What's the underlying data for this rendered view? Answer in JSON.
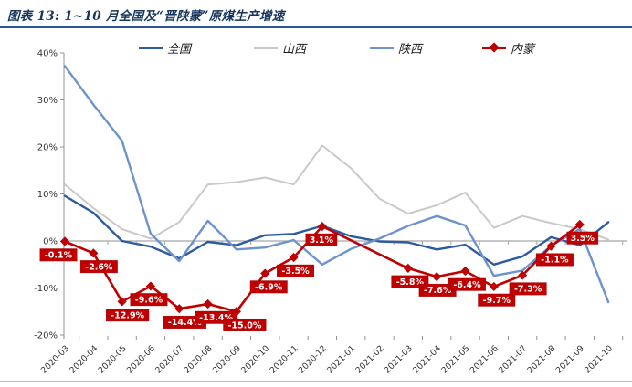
{
  "header": {
    "title": "图表 13:  1~10 月全国及“晋陕蒙”原煤生产增速"
  },
  "chart_data": {
    "type": "line",
    "title": "1~10 月全国及“晋陕蒙”原煤生产增速",
    "categories": [
      "2020-03",
      "2020-04",
      "2020-05",
      "2020-06",
      "2020-07",
      "2020-08",
      "2020-09",
      "2020-10",
      "2020-11",
      "2020-12",
      "2021-01",
      "2021-02",
      "2021-03",
      "2021-04",
      "2021-05",
      "2021-06",
      "2021-07",
      "2021-08",
      "2021-09",
      "2021-10"
    ],
    "series": [
      {
        "name": "全国",
        "color": "#2E5B9F",
        "stroke_width": 2.4,
        "values": [
          9.6,
          6.0,
          0.0,
          -1.2,
          -3.7,
          -0.2,
          -0.9,
          1.2,
          1.5,
          3.2,
          1.0,
          -0.1,
          -0.3,
          -1.8,
          -0.8,
          -5.0,
          -3.3,
          0.8,
          -0.9,
          4.0
        ]
      },
      {
        "name": "山西",
        "color": "#C9C9C9",
        "stroke_width": 2.0,
        "values": [
          12.0,
          7.0,
          2.5,
          0.5,
          4.0,
          12.0,
          12.5,
          13.5,
          12.0,
          20.3,
          15.5,
          9.0,
          5.8,
          7.6,
          10.3,
          2.8,
          5.3,
          3.8,
          2.5,
          0.3
        ]
      },
      {
        "name": "陕西",
        "color": "#6D93CE",
        "stroke_width": 2.4,
        "values": [
          37.2,
          29.0,
          21.3,
          1.5,
          -4.3,
          4.3,
          -1.8,
          -1.4,
          0.2,
          -5.0,
          -1.7,
          0.5,
          3.2,
          5.3,
          3.3,
          -7.4,
          -6.3,
          -1.0,
          2.5,
          -13.0
        ]
      },
      {
        "name": "内蒙",
        "color": "#C00000",
        "stroke_width": 2.6,
        "marker": "diamond",
        "values": [
          -0.1,
          -2.6,
          -12.9,
          -9.6,
          -14.4,
          -13.4,
          -15.0,
          -6.9,
          -3.5,
          3.1,
          null,
          null,
          -5.8,
          -7.6,
          -6.4,
          -9.7,
          -7.3,
          -1.1,
          3.5,
          null
        ],
        "data_labels": [
          "-0.1%",
          "-2.6%",
          "-12.9%",
          "-9.6%",
          "-14.4%",
          "-13.4%",
          "-15.0%",
          "-6.9%",
          "-3.5%",
          "3.1%",
          null,
          null,
          "-5.8%",
          "-7.6%",
          "-6.4%",
          "-9.7%",
          "-7.3%",
          "-1.1%",
          "3.5%",
          null
        ],
        "label_offsets_dx": [
          -7,
          6,
          6,
          -2,
          6,
          9,
          9,
          4,
          2,
          -1,
          null,
          null,
          2,
          1,
          2,
          3,
          6,
          4,
          3,
          null
        ]
      }
    ],
    "y_ticks": [
      "40%",
      "30%",
      "20%",
      "10%",
      "0%",
      "-10%",
      "-20%"
    ],
    "ylim": [
      -20,
      40
    ],
    "grid": "zero-line-only",
    "legend_position": "top",
    "label_bg": "#C00000",
    "label_fg": "#FFFFFF"
  },
  "rules": {
    "top_rule_color": "#2F5597",
    "bottom_rule_color": "#A9C4E5"
  }
}
